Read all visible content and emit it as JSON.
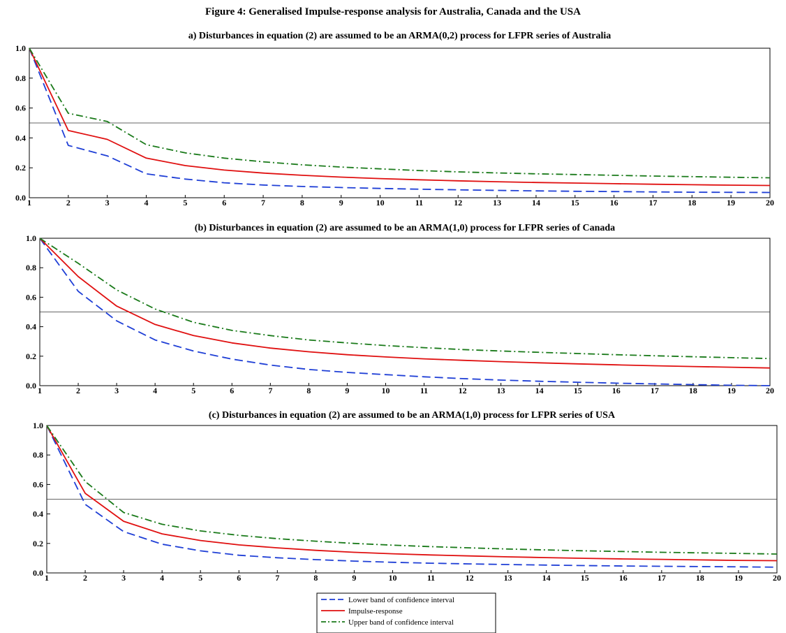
{
  "figure_title": "Figure 4: Generalised Impulse-response analysis for Australia, Canada and the USA",
  "legend": {
    "entries": [
      {
        "label": "Lower band of confidence interval",
        "color": "#1f3fd6",
        "dash": "dash"
      },
      {
        "label": "Impulse-response",
        "color": "#e01010",
        "dash": "solid"
      },
      {
        "label": "Upper band of confidence interval",
        "color": "#1a7a1a",
        "dash": "dashdot"
      }
    ]
  },
  "chart_data": [
    {
      "type": "line",
      "title": "a) Disturbances in equation (2) are assumed to be an ARMA(0,2) process for LFPR series of Australia",
      "x": [
        1,
        2,
        3,
        4,
        5,
        6,
        7,
        8,
        9,
        10,
        11,
        12,
        13,
        14,
        15,
        16,
        17,
        18,
        19,
        20
      ],
      "ylim": [
        0,
        1.0
      ],
      "yticks": [
        "0.0",
        "0.2",
        "0.4",
        "0.6",
        "0.8",
        "1.0"
      ],
      "xticks": [
        "1",
        "2",
        "3",
        "4",
        "5",
        "6",
        "7",
        "8",
        "9",
        "10",
        "11",
        "12",
        "13",
        "14",
        "15",
        "16",
        "17",
        "18",
        "19",
        "20"
      ],
      "reference_line": 0.5,
      "series": [
        {
          "name": "Lower band of confidence interval",
          "values": [
            1.0,
            0.35,
            0.28,
            0.16,
            0.125,
            0.1,
            0.085,
            0.075,
            0.068,
            0.062,
            0.057,
            0.053,
            0.049,
            0.046,
            0.043,
            0.041,
            0.039,
            0.037,
            0.036,
            0.035
          ]
        },
        {
          "name": "Impulse-response",
          "values": [
            1.0,
            0.45,
            0.39,
            0.265,
            0.215,
            0.185,
            0.165,
            0.15,
            0.138,
            0.128,
            0.12,
            0.113,
            0.107,
            0.102,
            0.098,
            0.094,
            0.09,
            0.087,
            0.084,
            0.082
          ]
        },
        {
          "name": "Upper band of confidence interval",
          "values": [
            1.0,
            0.565,
            0.51,
            0.355,
            0.3,
            0.265,
            0.24,
            0.22,
            0.205,
            0.193,
            0.182,
            0.173,
            0.166,
            0.16,
            0.155,
            0.15,
            0.145,
            0.141,
            0.137,
            0.133
          ]
        }
      ]
    },
    {
      "type": "line",
      "title": "(b) Disturbances in equation (2) are assumed to be an ARMA(1,0) process for LFPR series of Canada",
      "x": [
        1,
        2,
        3,
        4,
        5,
        6,
        7,
        8,
        9,
        10,
        11,
        12,
        13,
        14,
        15,
        16,
        17,
        18,
        19,
        20
      ],
      "ylim": [
        0,
        1.0
      ],
      "yticks": [
        "0.0",
        "0.2",
        "0.4",
        "0.6",
        "0.8",
        "1.0"
      ],
      "xticks": [
        "1",
        "2",
        "3",
        "4",
        "5",
        "6",
        "7",
        "8",
        "9",
        "10",
        "11",
        "12",
        "13",
        "14",
        "15",
        "16",
        "17",
        "18",
        "19",
        "20"
      ],
      "reference_line": 0.5,
      "series": [
        {
          "name": "Lower band of confidence interval",
          "values": [
            1.0,
            0.64,
            0.44,
            0.31,
            0.235,
            0.18,
            0.14,
            0.11,
            0.09,
            0.075,
            0.06,
            0.048,
            0.038,
            0.03,
            0.023,
            0.017,
            0.012,
            0.007,
            0.003,
            0.0
          ]
        },
        {
          "name": "Impulse-response",
          "values": [
            1.0,
            0.74,
            0.54,
            0.415,
            0.34,
            0.29,
            0.255,
            0.23,
            0.21,
            0.195,
            0.182,
            0.172,
            0.163,
            0.155,
            0.148,
            0.141,
            0.135,
            0.13,
            0.125,
            0.12
          ]
        },
        {
          "name": "Upper band of confidence interval",
          "values": [
            1.0,
            0.83,
            0.65,
            0.52,
            0.43,
            0.375,
            0.34,
            0.31,
            0.29,
            0.272,
            0.258,
            0.245,
            0.235,
            0.226,
            0.218,
            0.21,
            0.203,
            0.196,
            0.19,
            0.184
          ]
        }
      ]
    },
    {
      "type": "line",
      "title": "(c) Disturbances in equation (2) are assumed to be an ARMA(1,0) process for LFPR series of USA",
      "x": [
        1,
        2,
        3,
        4,
        5,
        6,
        7,
        8,
        9,
        10,
        11,
        12,
        13,
        14,
        15,
        16,
        17,
        18,
        19,
        20
      ],
      "ylim": [
        0,
        1.0
      ],
      "yticks": [
        "0.0",
        "0.2",
        "0.4",
        "0.6",
        "0.8",
        "1.0"
      ],
      "xticks": [
        "1",
        "2",
        "3",
        "4",
        "5",
        "6",
        "7",
        "8",
        "9",
        "10",
        "11",
        "12",
        "13",
        "14",
        "15",
        "16",
        "17",
        "18",
        "19",
        "20"
      ],
      "reference_line": 0.5,
      "series": [
        {
          "name": "Lower band of confidence interval",
          "values": [
            1.0,
            0.465,
            0.28,
            0.195,
            0.15,
            0.12,
            0.103,
            0.09,
            0.08,
            0.072,
            0.066,
            0.061,
            0.057,
            0.053,
            0.05,
            0.047,
            0.045,
            0.043,
            0.041,
            0.039
          ]
        },
        {
          "name": "Impulse-response",
          "values": [
            1.0,
            0.54,
            0.35,
            0.265,
            0.22,
            0.19,
            0.17,
            0.153,
            0.14,
            0.13,
            0.122,
            0.115,
            0.109,
            0.104,
            0.099,
            0.095,
            0.092,
            0.088,
            0.085,
            0.083
          ]
        },
        {
          "name": "Upper band of confidence interval",
          "values": [
            1.0,
            0.62,
            0.41,
            0.33,
            0.285,
            0.255,
            0.232,
            0.215,
            0.2,
            0.188,
            0.178,
            0.17,
            0.162,
            0.156,
            0.15,
            0.145,
            0.14,
            0.136,
            0.132,
            0.128
          ]
        }
      ]
    }
  ]
}
